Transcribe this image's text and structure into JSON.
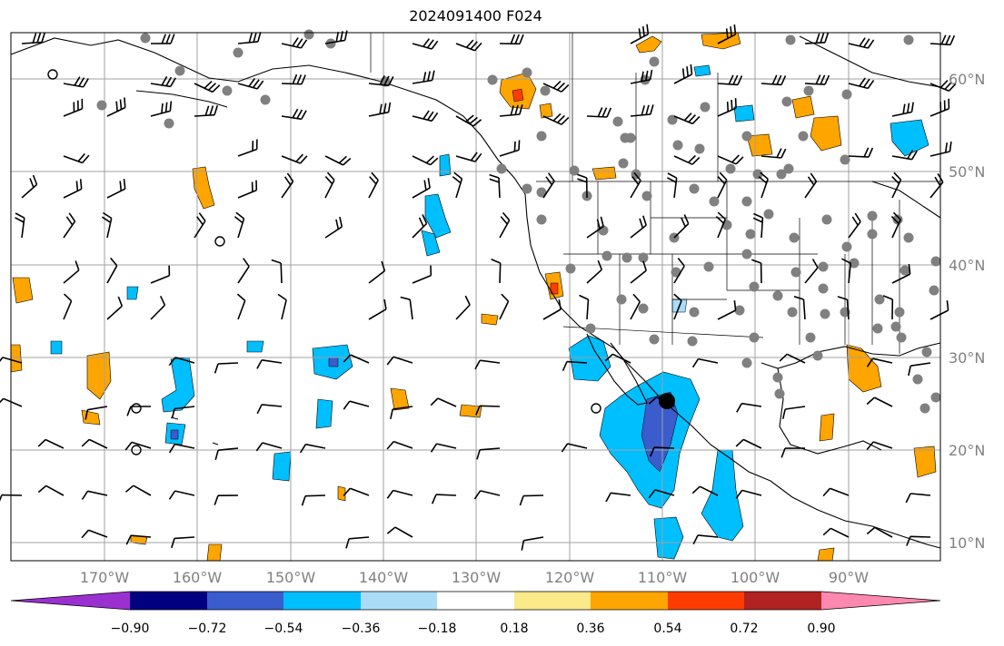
{
  "title": "2024091400 F024",
  "latitude_labels": [
    "60°N",
    "50°N",
    "40°N",
    "30°N",
    "20°N",
    "10°N"
  ],
  "longitude_labels": [
    "170°W",
    "160°W",
    "150°W",
    "140°W",
    "130°W",
    "120°W",
    "110°W",
    "100°W",
    "90°W"
  ],
  "colorbar": {
    "tick_labels": [
      "−0.90",
      "−0.72",
      "−0.54",
      "−0.36",
      "−0.18",
      "0.18",
      "0.36",
      "0.54",
      "0.72",
      "0.90"
    ],
    "colors": [
      "#9b30d0",
      "#000080",
      "#3a5ccc",
      "#00bfff",
      "#aadcf8",
      "#ffffff",
      "#fbe98a",
      "#ffa500",
      "#ff3c00",
      "#b22222",
      "#ff88b0"
    ]
  },
  "colors": {
    "land_line": "#000000",
    "grid": "#a0a0a0",
    "station_dot": "#808080",
    "warm_fill": "#ffa500",
    "cool_fill": "#00bfff",
    "deep_cool_fill": "#3a5ccc"
  }
}
